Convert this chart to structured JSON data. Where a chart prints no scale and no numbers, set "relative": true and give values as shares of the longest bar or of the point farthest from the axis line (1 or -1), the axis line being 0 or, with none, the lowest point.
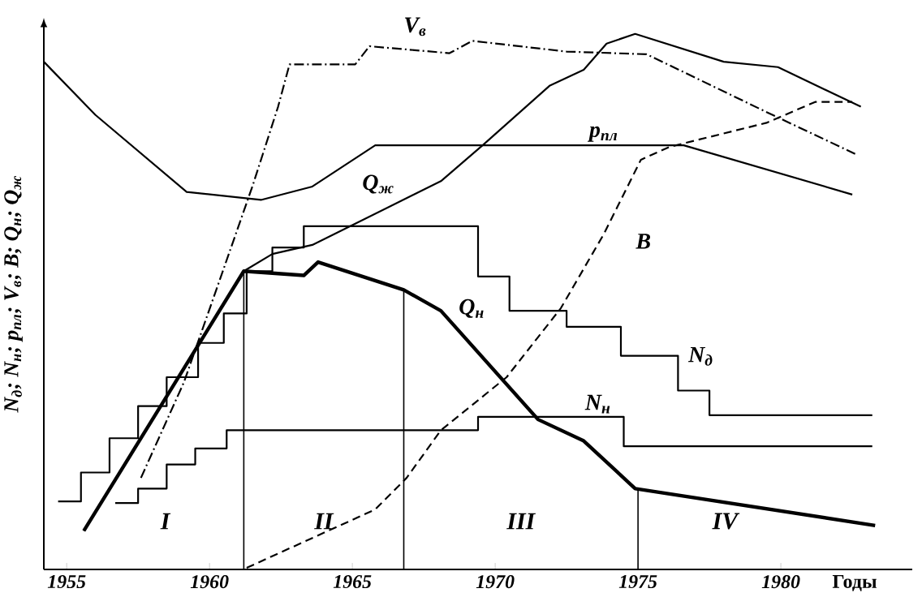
{
  "chart_data": {
    "type": "line",
    "relative": true,
    "xlabel": "Годы",
    "ylabel": "N$_{д}$; N$_{н}$; p$_{пл}$; V$_{в}$; B; Q$_{н}$; Q$_{ж}$",
    "xlim": [
      1954.2,
      1984.6
    ],
    "xticks": [
      1955,
      1960,
      1965,
      1970,
      1975,
      1980
    ],
    "color": "#000000",
    "series": [
      {
        "name": "V$_{в}$",
        "line_style": "dashdot",
        "x": [
          1957.6,
          1959.1,
          1960.4,
          1961.5,
          1962.4,
          1962.8,
          1965.1,
          1965.6,
          1968.4,
          1969.2,
          1972.5,
          1975.3,
          1979.5,
          1982.6
        ],
        "values": [
          0.171,
          0.349,
          0.547,
          0.715,
          0.864,
          0.943,
          0.943,
          0.977,
          0.964,
          0.987,
          0.967,
          0.962,
          0.854,
          0.776
        ]
      },
      {
        "name": "Q$_{ж}$",
        "line_style": "solid",
        "x": [
          1955.6,
          1961.2,
          1962.2,
          1963.6,
          1968.1,
          1969.6,
          1971.9,
          1973.1,
          1973.9,
          1974.9,
          1978.0,
          1979.9,
          1982.8
        ],
        "values": [
          0.072,
          0.557,
          0.589,
          0.606,
          0.725,
          0.794,
          0.903,
          0.933,
          0.982,
          1.0,
          0.948,
          0.938,
          0.864
        ]
      },
      {
        "name": "p$_{пл}$",
        "line_style": "solid",
        "x": [
          1954.2,
          1956.0,
          1959.2,
          1961.8,
          1963.6,
          1965.8,
          1976.6,
          1982.5
        ],
        "values": [
          0.948,
          0.849,
          0.705,
          0.69,
          0.715,
          0.792,
          0.792,
          0.7
        ]
      },
      {
        "name": "B",
        "line_style": "dashed",
        "x": [
          1961.3,
          1965.8,
          1966.9,
          1968.1,
          1970.4,
          1972.3,
          1973.8,
          1975.1,
          1976.1,
          1979.5,
          1981.2,
          1982.5
        ],
        "values": [
          0.003,
          0.112,
          0.171,
          0.26,
          0.359,
          0.488,
          0.626,
          0.765,
          0.789,
          0.834,
          0.873,
          0.873
        ]
      },
      {
        "name": "Q$_{н}$",
        "line_style": "solid",
        "x": [
          1955.6,
          1961.2,
          1963.3,
          1963.8,
          1966.8,
          1968.1,
          1971.5,
          1973.1,
          1974.9,
          1983.3
        ],
        "values": [
          0.072,
          0.557,
          0.549,
          0.574,
          0.522,
          0.483,
          0.28,
          0.24,
          0.151,
          0.082
        ]
      },
      {
        "name": "N$_{д}$",
        "type": "step",
        "line_style": "solid",
        "x": [
          1954.7,
          1955.5,
          1956.5,
          1957.5,
          1958.5,
          1959.6,
          1960.5,
          1961.3,
          1962.2,
          1963.3,
          1969.4,
          1970.5,
          1972.5,
          1974.4,
          1976.4,
          1977.5,
          1983.2
        ],
        "values": [
          0.127,
          0.181,
          0.245,
          0.305,
          0.359,
          0.423,
          0.478,
          0.557,
          0.601,
          0.641,
          0.547,
          0.483,
          0.453,
          0.399,
          0.334,
          0.288,
          0.288
        ]
      },
      {
        "name": "N$_{н}$",
        "type": "step",
        "line_style": "solid",
        "x": [
          1956.7,
          1957.5,
          1958.5,
          1959.5,
          1960.6,
          1969.4,
          1974.5,
          1983.2
        ],
        "values": [
          0.124,
          0.151,
          0.196,
          0.226,
          0.26,
          0.285,
          0.23,
          0.23
        ]
      }
    ],
    "ref_lines": [
      {
        "axis": "x",
        "value": 1961.2
      },
      {
        "axis": "x",
        "value": 1966.8
      },
      {
        "axis": "x",
        "value": 1975.0
      }
    ],
    "annotations": [
      "I",
      "II",
      "III",
      "IV"
    ]
  }
}
